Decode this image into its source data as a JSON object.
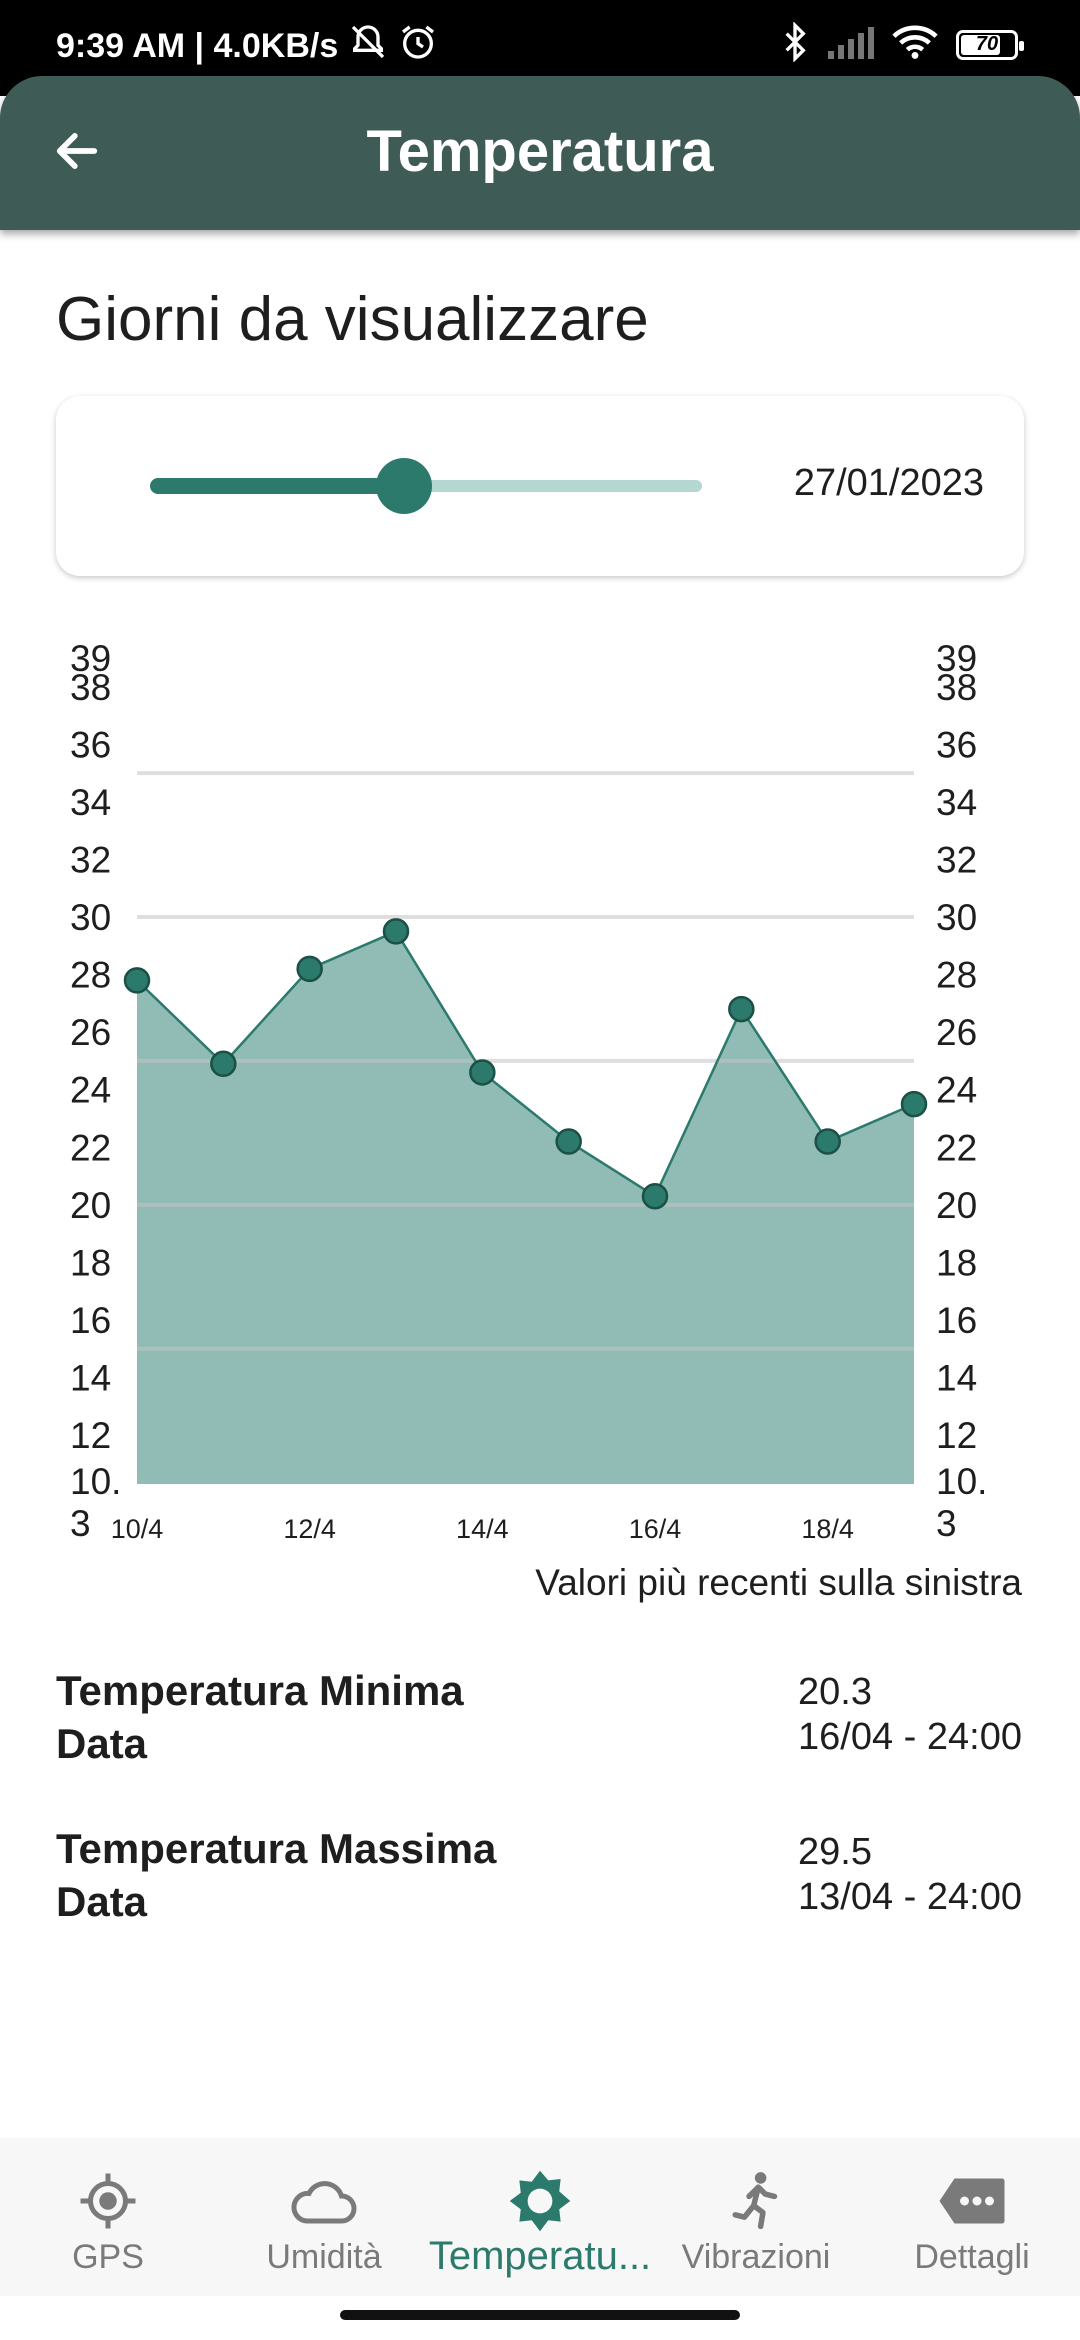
{
  "status_bar": {
    "time_speed": "9:39 AM | 4.0KB/s",
    "battery": "70"
  },
  "app_bar": {
    "title": "Temperatura",
    "back_icon": "arrow-back-icon"
  },
  "section": {
    "title": "Giorni da visualizzare"
  },
  "slider": {
    "date": "27/01/2023",
    "value_fraction": 0.46
  },
  "chart_data": {
    "type": "area",
    "x_labels": [
      "10/4",
      "",
      "12/4",
      "",
      "14/4",
      "",
      "16/4",
      "",
      "18/4",
      ""
    ],
    "values": [
      27.8,
      24.9,
      28.2,
      29.5,
      24.6,
      22.2,
      20.3,
      26.8,
      22.2,
      23.5
    ],
    "y_ticks_left": [
      "10.\n3",
      "12",
      "14",
      "16",
      "18",
      "20",
      "22",
      "24",
      "26",
      "28",
      "30",
      "32",
      "34",
      "36",
      "38",
      "39"
    ],
    "y_ticks_right": [
      "10.\n3",
      "12",
      "14",
      "16",
      "18",
      "20",
      "22",
      "24",
      "26",
      "28",
      "30",
      "32",
      "34",
      "36",
      "38",
      "39"
    ],
    "ylim": [
      10.3,
      39.0
    ],
    "reference_lines": [
      35,
      30,
      25,
      20,
      15
    ],
    "colors": {
      "fill": "#90bcb5",
      "line": "#2b7a6c",
      "point": "#2b7a6c",
      "point_border": "#1c4f45",
      "reference_line": "#c2c2c2"
    },
    "note": "Valori più recenti sulla sinistra"
  },
  "stats": {
    "min_label": "Temperatura Minima",
    "min_date_label": "Data",
    "min_value": "20.3",
    "min_date": "16/04 - 24:00",
    "max_label": "Temperatura Massima",
    "max_date_label": "Data",
    "max_value": "29.5",
    "max_date": "13/04 - 24:00"
  },
  "bottom_nav": {
    "items": [
      {
        "label": "GPS",
        "icon": "gps-target-icon",
        "active": false
      },
      {
        "label": "Umidità",
        "icon": "cloud-icon",
        "active": false
      },
      {
        "label": "Temperatu...",
        "icon": "sun-icon",
        "active": true
      },
      {
        "label": "Vibrazioni",
        "icon": "running-person-icon",
        "active": false
      },
      {
        "label": "Dettagli",
        "icon": "more-tag-icon",
        "active": false
      }
    ],
    "active_color": "#2b7a6c",
    "inactive_color": "#7a7a7a"
  }
}
